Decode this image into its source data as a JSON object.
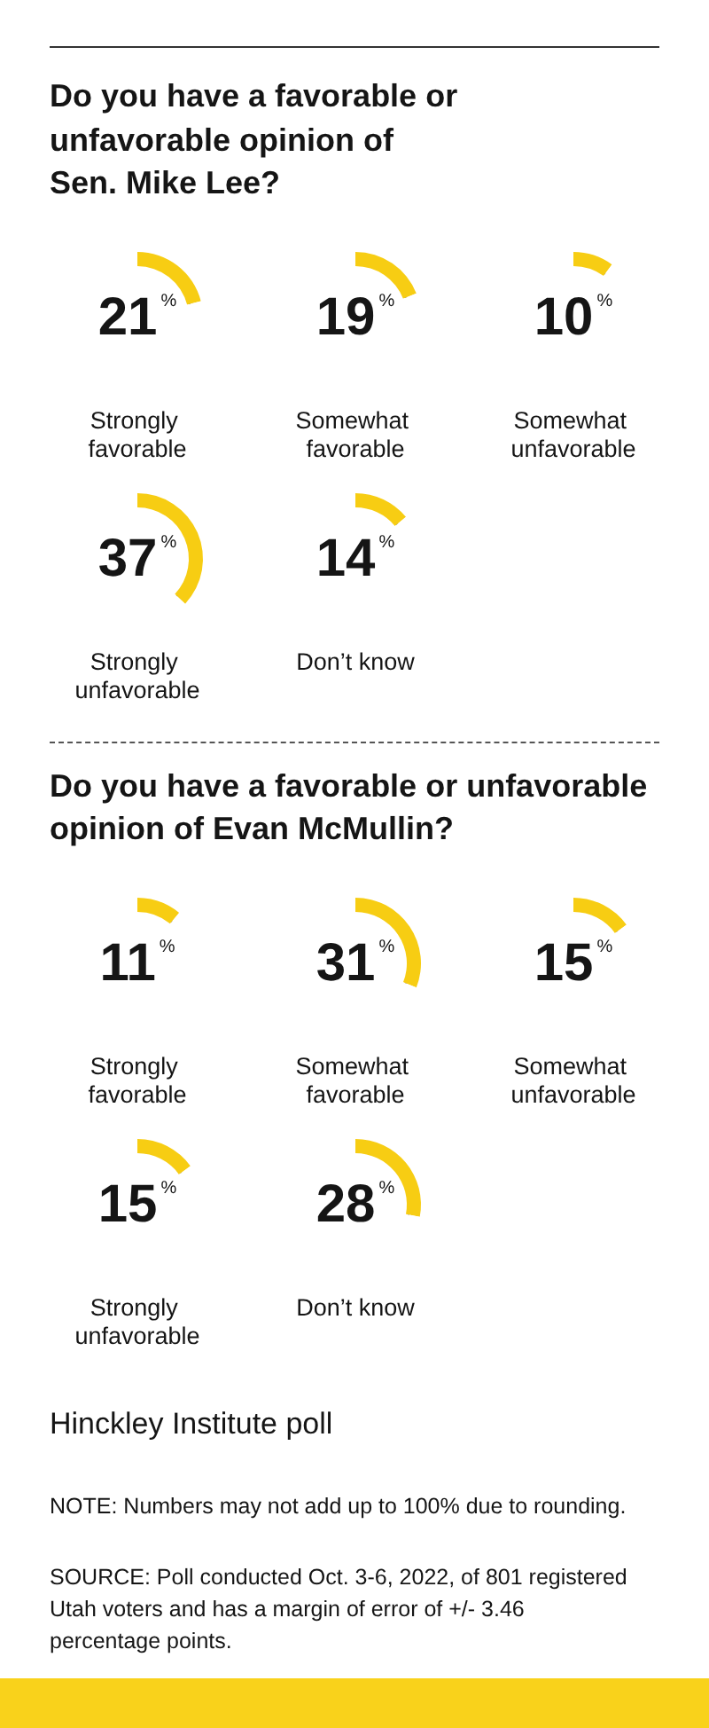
{
  "chart_data": [
    {
      "type": "other",
      "title": "Do you have a favorable or unfavorable opinion of Sen. Mike Lee?"
    },
    {
      "type": "donut",
      "title": "Strongly favorable",
      "categories": [
        null,
        null
      ],
      "values": [
        21,
        79
      ],
      "value_labels": [
        "21%",
        null
      ],
      "colors": [
        "#f7cd13",
        "#ffffff"
      ]
    },
    {
      "type": "donut",
      "title": "Somewhat favorable",
      "categories": [
        null,
        null
      ],
      "values": [
        19,
        81
      ],
      "value_labels": [
        "19%",
        null
      ],
      "colors": [
        "#f7cd13",
        "#ffffff"
      ]
    },
    {
      "type": "donut",
      "title": "Somewhat unfavorable",
      "categories": [
        null,
        null
      ],
      "values": [
        10,
        90
      ],
      "value_labels": [
        "10%",
        null
      ],
      "colors": [
        "#f7cd13",
        "#ffffff"
      ]
    },
    {
      "type": "donut",
      "title": "Strongly unfavorable",
      "categories": [
        null,
        null
      ],
      "values": [
        37,
        63
      ],
      "value_labels": [
        "37%",
        null
      ],
      "colors": [
        "#f7cd13",
        "#ffffff"
      ]
    },
    {
      "type": "donut",
      "title": "Don’t know",
      "categories": [
        null,
        null
      ],
      "values": [
        14,
        86
      ],
      "value_labels": [
        "14%",
        null
      ],
      "colors": [
        "#f7cd13",
        "#ffffff"
      ]
    },
    {
      "type": "other",
      "title": "Do you have a favorable or unfavorable opinion of Evan McMullin?"
    },
    {
      "type": "donut",
      "title": "Strongly favorable",
      "categories": [
        null,
        null
      ],
      "values": [
        11,
        89
      ],
      "value_labels": [
        "11%",
        null
      ],
      "colors": [
        "#f7cd13",
        "#ffffff"
      ]
    },
    {
      "type": "donut",
      "title": "Somewhat favorable",
      "categories": [
        null,
        null
      ],
      "values": [
        31,
        69
      ],
      "value_labels": [
        "31%",
        null
      ],
      "colors": [
        "#f7cd13",
        "#ffffff"
      ]
    },
    {
      "type": "donut",
      "title": "Somewhat unfavorable",
      "categories": [
        null,
        null
      ],
      "values": [
        15,
        85
      ],
      "value_labels": [
        "15%",
        null
      ],
      "colors": [
        "#f7cd13",
        "#ffffff"
      ]
    },
    {
      "type": "donut",
      "title": "Strongly unfavorable",
      "categories": [
        null,
        null
      ],
      "values": [
        15,
        85
      ],
      "value_labels": [
        "15%",
        null
      ],
      "colors": [
        "#f7cd13",
        "#ffffff"
      ]
    },
    {
      "type": "donut",
      "title": "Don’t know",
      "categories": [
        null,
        null
      ],
      "values": [
        28,
        72
      ],
      "value_labels": [
        "28%",
        null
      ],
      "colors": [
        "#f7cd13",
        "#ffffff"
      ]
    },
    {
      "type": "other",
      "annotations": [
        "Hinckley Institute poll",
        "NOTE: Numbers may not add up to 100% due to rounding.",
        "SOURCE: Poll conducted Oct. 3-6, 2022, of 801 registered Utah voters and has a margin of error of +/- 3.46 percentage points."
      ]
    }
  ]
}
